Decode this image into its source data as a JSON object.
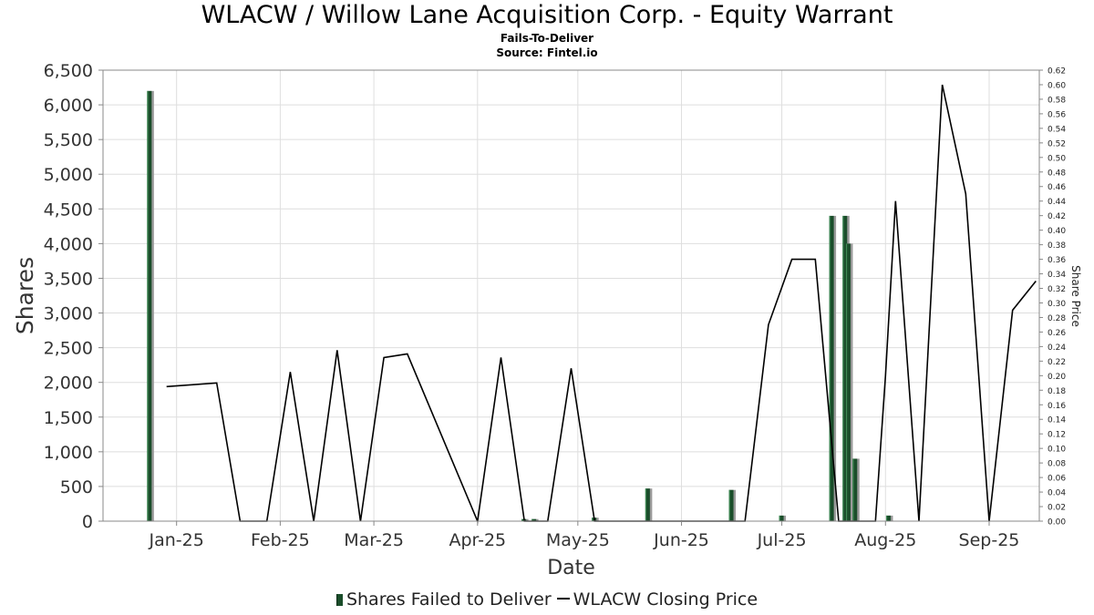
{
  "chart_data": {
    "type": "bar+line",
    "title": "WLACW / Willow Lane Acquisition Corp. - Equity Warrant",
    "subtitle": "Fails-To-Deliver",
    "source": "Source: Fintel.io",
    "xlabel": "Date",
    "ylabel": "Shares",
    "y2label": "Share Price",
    "ylim": [
      0,
      6500
    ],
    "y2lim": [
      0,
      0.62
    ],
    "xlim": [
      "2024-12-10",
      "2025-09-16"
    ],
    "yticks": [
      "0",
      "500",
      "1,000",
      "1,500",
      "2,000",
      "2,500",
      "3,000",
      "3,500",
      "4,000",
      "4,500",
      "5,000",
      "5,500",
      "6,000",
      "6,500"
    ],
    "y2ticks": [
      "0.00",
      "0.02",
      "0.04",
      "0.06",
      "0.08",
      "0.10",
      "0.12",
      "0.14",
      "0.16",
      "0.18",
      "0.20",
      "0.22",
      "0.24",
      "0.26",
      "0.28",
      "0.30",
      "0.32",
      "0.34",
      "0.36",
      "0.38",
      "0.40",
      "0.42",
      "0.44",
      "0.46",
      "0.48",
      "0.50",
      "0.52",
      "0.54",
      "0.56",
      "0.58",
      "0.60",
      "0.62"
    ],
    "xticks": [
      {
        "date": "2025-01-01",
        "label": "Jan-25"
      },
      {
        "date": "2025-02-01",
        "label": "Feb-25"
      },
      {
        "date": "2025-03-01",
        "label": "Mar-25"
      },
      {
        "date": "2025-04-01",
        "label": "Apr-25"
      },
      {
        "date": "2025-05-01",
        "label": "May-25"
      },
      {
        "date": "2025-06-01",
        "label": "Jun-25"
      },
      {
        "date": "2025-07-01",
        "label": "Jul-25"
      },
      {
        "date": "2025-08-01",
        "label": "Aug-25"
      },
      {
        "date": "2025-09-01",
        "label": "Sep-25"
      }
    ],
    "grid": true,
    "legend_position": "bottom",
    "series": [
      {
        "name": "Shares Failed to Deliver",
        "type": "bar",
        "axis": "left",
        "color": "#1a4d2a",
        "points": [
          {
            "date": "2024-12-24",
            "value": 6200
          },
          {
            "date": "2025-04-15",
            "value": 30
          },
          {
            "date": "2025-04-18",
            "value": 30
          },
          {
            "date": "2025-05-06",
            "value": 50
          },
          {
            "date": "2025-05-22",
            "value": 470
          },
          {
            "date": "2025-06-16",
            "value": 450
          },
          {
            "date": "2025-07-01",
            "value": 80
          },
          {
            "date": "2025-07-16",
            "value": 4400
          },
          {
            "date": "2025-07-20",
            "value": 4400
          },
          {
            "date": "2025-07-21",
            "value": 4000
          },
          {
            "date": "2025-07-23",
            "value": 900
          },
          {
            "date": "2025-08-02",
            "value": 80
          }
        ]
      },
      {
        "name": "WLACW Closing Price",
        "type": "line",
        "axis": "right",
        "color": "#000000",
        "points": [
          {
            "date": "2024-12-29",
            "value": 0.185
          },
          {
            "date": "2025-01-13",
            "value": 0.19
          },
          {
            "date": "2025-01-20",
            "value": 0.0
          },
          {
            "date": "2025-01-28",
            "value": 0.0
          },
          {
            "date": "2025-02-04",
            "value": 0.205
          },
          {
            "date": "2025-02-11",
            "value": 0.0
          },
          {
            "date": "2025-02-18",
            "value": 0.235
          },
          {
            "date": "2025-02-25",
            "value": 0.0
          },
          {
            "date": "2025-03-04",
            "value": 0.225
          },
          {
            "date": "2025-03-11",
            "value": 0.23
          },
          {
            "date": "2025-04-01",
            "value": 0.0
          },
          {
            "date": "2025-04-08",
            "value": 0.225
          },
          {
            "date": "2025-04-15",
            "value": 0.0
          },
          {
            "date": "2025-04-22",
            "value": 0.0
          },
          {
            "date": "2025-04-29",
            "value": 0.21
          },
          {
            "date": "2025-05-06",
            "value": 0.0
          },
          {
            "date": "2025-06-13",
            "value": 0.0
          },
          {
            "date": "2025-06-20",
            "value": 0.0
          },
          {
            "date": "2025-06-27",
            "value": 0.27
          },
          {
            "date": "2025-07-04",
            "value": 0.36
          },
          {
            "date": "2025-07-11",
            "value": 0.36
          },
          {
            "date": "2025-07-18",
            "value": 0.0
          },
          {
            "date": "2025-07-25",
            "value": 0.0
          },
          {
            "date": "2025-07-29",
            "value": 0.0
          },
          {
            "date": "2025-08-01",
            "value": 0.2
          },
          {
            "date": "2025-08-04",
            "value": 0.44
          },
          {
            "date": "2025-08-11",
            "value": 0.0
          },
          {
            "date": "2025-08-18",
            "value": 0.6
          },
          {
            "date": "2025-08-25",
            "value": 0.45
          },
          {
            "date": "2025-09-01",
            "value": 0.0
          },
          {
            "date": "2025-09-08",
            "value": 0.29
          },
          {
            "date": "2025-09-15",
            "value": 0.33
          }
        ]
      }
    ]
  }
}
